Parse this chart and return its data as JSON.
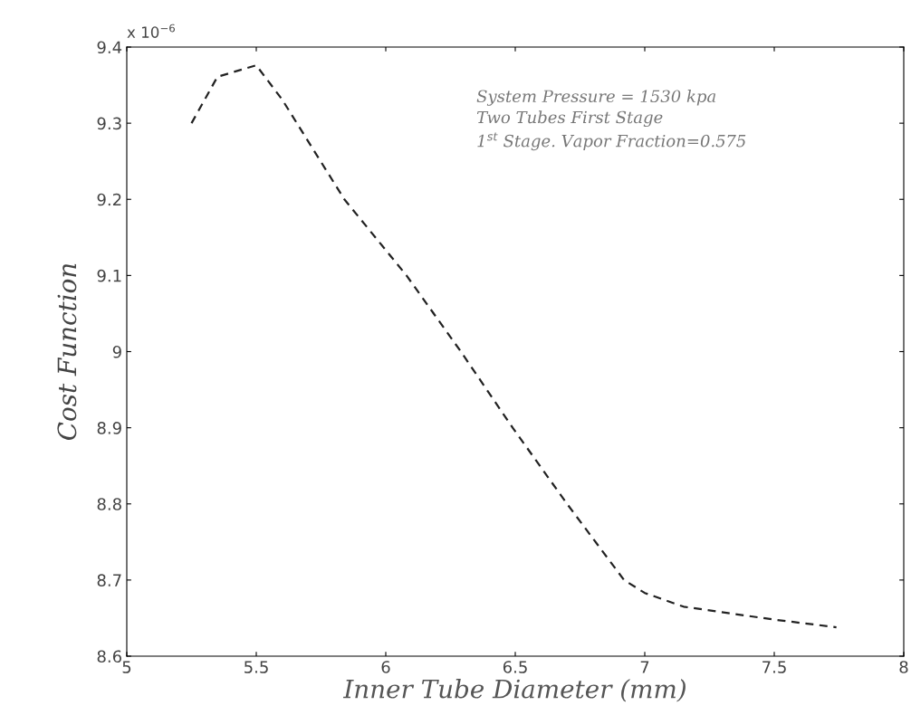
{
  "chart_data": {
    "type": "line",
    "xlabel": "Inner Tube Diameter (mm)",
    "ylabel": "Cost Function",
    "annotations": [
      "x 10$^{−6}$",
      "System Pressure = 1530 kpa\nTwo Tubes First Stage\n1$^{st}$ Stage. Vapor Fraction=0.575"
    ],
    "x": [
      5.25,
      5.35,
      5.5,
      5.6,
      5.84,
      6.08,
      6.29,
      6.49,
      6.7,
      6.92,
      7.0,
      7.15,
      7.5,
      7.74
    ],
    "series": [
      {
        "color": "#222222",
        "values": [
          9.3,
          9.361,
          9.376,
          9.331,
          9.2,
          9.1,
          9.0,
          8.9,
          8.8,
          8.7,
          8.683,
          8.665,
          8.648,
          8.638
        ]
      }
    ],
    "line_style": "dashed",
    "marker": "none",
    "grid": false,
    "legend": false,
    "xlim": [
      5,
      8
    ],
    "xticks": [
      5,
      5.5,
      6,
      6.5,
      7,
      7.5,
      8
    ],
    "ylim": [
      8.6,
      9.4
    ],
    "yticks": [
      8.6,
      8.7,
      8.8,
      8.9,
      9,
      9.1,
      9.2,
      9.3,
      9.4
    ]
  }
}
